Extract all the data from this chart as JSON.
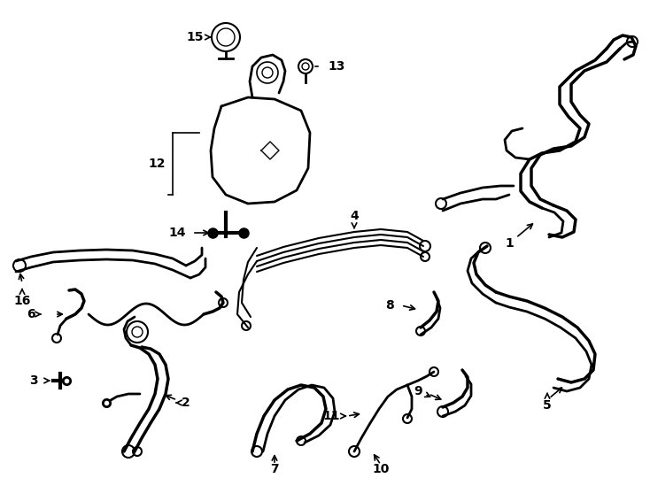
{
  "background_color": "#ffffff",
  "line_color": "#000000",
  "fig_width": 7.34,
  "fig_height": 5.4,
  "dpi": 100,
  "border_color": "#444444"
}
